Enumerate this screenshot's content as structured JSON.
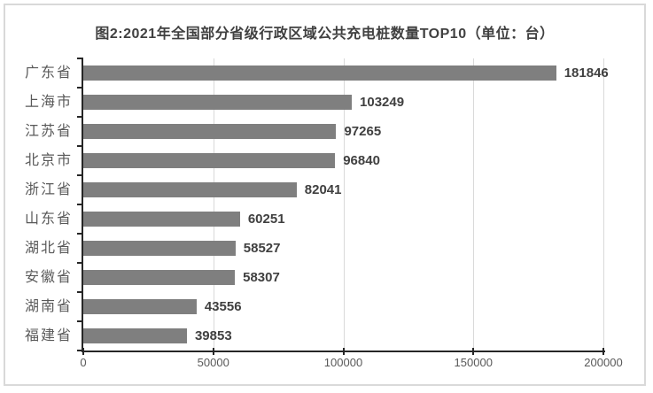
{
  "frame": {
    "background_color": "#ffffff",
    "border_color": "#d9d9d9"
  },
  "chart_data": {
    "type": "bar",
    "orientation": "horizontal",
    "title": "图2:2021年全国部分省级行政区域公共充电桩数量TOP10（单位：台）",
    "categories": [
      "广东省",
      "上海市",
      "江苏省",
      "北京市",
      "浙江省",
      "山东省",
      "湖北省",
      "安徽省",
      "湖南省",
      "福建省"
    ],
    "values": [
      181846,
      103249,
      97265,
      96840,
      82041,
      60251,
      58527,
      58307,
      43556,
      39853
    ],
    "value_labels": [
      "181846",
      "103249",
      "97265",
      "96840",
      "82041",
      "60251",
      "58527",
      "58307",
      "43556",
      "39853"
    ],
    "xlabel": "",
    "ylabel": "",
    "xlim": [
      0,
      200000
    ],
    "x_ticks": [
      0,
      50000,
      100000,
      150000,
      200000
    ],
    "x_tick_labels": [
      "0",
      "50000",
      "100000",
      "150000",
      "200000"
    ],
    "grid": true,
    "legend": false,
    "data_labels": true,
    "colors": {
      "bar": "#7f7f7f",
      "value_label": "#404040",
      "category_label": "#595959",
      "tick_label": "#595959",
      "gridline": "#d9d9d9",
      "axis": "#262626",
      "title": "#404040"
    }
  }
}
